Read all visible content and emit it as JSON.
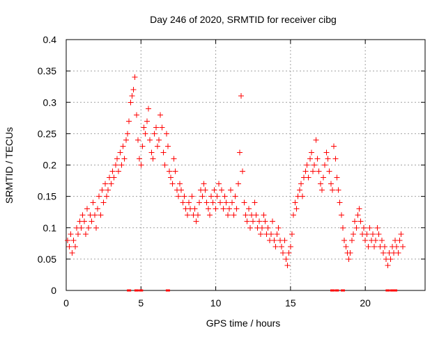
{
  "colors": {
    "series": "#ff0000",
    "grid": "#a0a0a0",
    "axis": "#000000",
    "background": "#ffffff"
  },
  "chart_data": {
    "type": "scatter",
    "title": "Day 246 of 2020, SRMTID for receiver cibg",
    "xlabel": "GPS time / hours",
    "ylabel": "SRMTID / TECUs",
    "xlim": [
      0,
      24
    ],
    "ylim": [
      0,
      0.4
    ],
    "x_ticks": [
      0,
      5,
      10,
      15,
      20
    ],
    "y_ticks": [
      0,
      0.05,
      0.1,
      0.15,
      0.2,
      0.25,
      0.3,
      0.35,
      0.4
    ],
    "x_tick_labels": [
      "0",
      "5",
      "10",
      "15",
      "20"
    ],
    "y_tick_labels": [
      "0",
      "0.05",
      "0.1",
      "0.15",
      "0.2",
      "0.25",
      "0.3",
      "0.35",
      "0.4"
    ],
    "grid": true,
    "marker": "plus",
    "series": [
      {
        "name": "SRMTID",
        "x": [
          0.1,
          0.2,
          0.3,
          0.4,
          0.5,
          0.6,
          0.7,
          0.8,
          0.9,
          1.0,
          1.1,
          1.2,
          1.3,
          1.4,
          1.5,
          1.6,
          1.7,
          1.8,
          1.9,
          2.0,
          2.1,
          2.2,
          2.3,
          2.4,
          2.5,
          2.6,
          2.7,
          2.8,
          2.9,
          3.0,
          3.1,
          3.2,
          3.3,
          3.4,
          3.5,
          3.6,
          3.7,
          3.8,
          3.9,
          4.0,
          4.1,
          4.2,
          4.3,
          4.4,
          4.5,
          4.6,
          4.7,
          4.8,
          4.9,
          5.0,
          5.1,
          5.2,
          5.3,
          5.4,
          5.5,
          5.6,
          5.7,
          5.8,
          5.9,
          6.0,
          6.1,
          6.2,
          6.3,
          6.4,
          6.5,
          6.6,
          6.7,
          6.8,
          6.9,
          7.0,
          7.1,
          7.2,
          7.3,
          7.4,
          7.5,
          7.6,
          7.7,
          7.8,
          7.9,
          8.0,
          8.1,
          8.2,
          8.3,
          8.4,
          8.5,
          8.6,
          8.7,
          8.8,
          8.9,
          9.0,
          9.1,
          9.2,
          9.3,
          9.4,
          9.5,
          9.6,
          9.7,
          9.8,
          9.9,
          10.0,
          10.1,
          10.2,
          10.3,
          10.4,
          10.5,
          10.6,
          10.7,
          10.8,
          10.9,
          11.0,
          11.1,
          11.2,
          11.3,
          11.4,
          11.5,
          11.6,
          11.7,
          11.8,
          11.9,
          12.0,
          12.1,
          12.2,
          12.3,
          12.4,
          12.5,
          12.6,
          12.7,
          12.8,
          12.9,
          13.0,
          13.1,
          13.2,
          13.3,
          13.4,
          13.5,
          13.6,
          13.7,
          13.8,
          13.9,
          14.0,
          14.1,
          14.2,
          14.3,
          14.4,
          14.5,
          14.6,
          14.7,
          14.8,
          14.9,
          15.0,
          15.1,
          15.2,
          15.3,
          15.4,
          15.5,
          15.6,
          15.7,
          15.8,
          15.9,
          16.0,
          16.1,
          16.2,
          16.3,
          16.4,
          16.5,
          16.6,
          16.7,
          16.8,
          16.9,
          17.0,
          17.1,
          17.2,
          17.3,
          17.4,
          17.5,
          17.6,
          17.7,
          17.8,
          17.9,
          18.0,
          18.1,
          18.2,
          18.3,
          18.4,
          18.5,
          18.6,
          18.7,
          18.8,
          18.9,
          19.0,
          19.1,
          19.2,
          19.3,
          19.4,
          19.5,
          19.6,
          19.7,
          19.8,
          19.9,
          20.0,
          20.1,
          20.2,
          20.3,
          20.4,
          20.5,
          20.6,
          20.7,
          20.8,
          20.9,
          21.0,
          21.1,
          21.2,
          21.3,
          21.4,
          21.5,
          21.6,
          21.7,
          21.8,
          21.9,
          22.0,
          22.1,
          22.2,
          22.3,
          22.4,
          22.5
        ],
        "y": [
          0.08,
          0.07,
          0.09,
          0.06,
          0.08,
          0.07,
          0.1,
          0.09,
          0.11,
          0.1,
          0.12,
          0.11,
          0.09,
          0.13,
          0.1,
          0.12,
          0.11,
          0.14,
          0.12,
          0.1,
          0.13,
          0.15,
          0.12,
          0.16,
          0.14,
          0.17,
          0.15,
          0.16,
          0.18,
          0.17,
          0.19,
          0.18,
          0.2,
          0.21,
          0.19,
          0.22,
          0.2,
          0.23,
          0.21,
          0.24,
          0.25,
          0.27,
          0.3,
          0.31,
          0.32,
          0.34,
          0.28,
          0.24,
          0.21,
          0.2,
          0.23,
          0.26,
          0.25,
          0.27,
          0.29,
          0.24,
          0.22,
          0.21,
          0.25,
          0.26,
          0.23,
          0.24,
          0.28,
          0.26,
          0.22,
          0.2,
          0.25,
          0.23,
          0.19,
          0.18,
          0.17,
          0.21,
          0.19,
          0.16,
          0.15,
          0.17,
          0.16,
          0.14,
          0.15,
          0.13,
          0.12,
          0.14,
          0.13,
          0.15,
          0.12,
          0.13,
          0.11,
          0.12,
          0.14,
          0.16,
          0.15,
          0.17,
          0.16,
          0.14,
          0.13,
          0.12,
          0.15,
          0.14,
          0.16,
          0.13,
          0.15,
          0.17,
          0.14,
          0.16,
          0.13,
          0.15,
          0.14,
          0.12,
          0.13,
          0.16,
          0.14,
          0.12,
          0.15,
          0.13,
          0.17,
          0.22,
          0.31,
          0.19,
          0.14,
          0.12,
          0.11,
          0.13,
          0.1,
          0.12,
          0.11,
          0.14,
          0.12,
          0.1,
          0.11,
          0.09,
          0.1,
          0.12,
          0.11,
          0.09,
          0.1,
          0.08,
          0.09,
          0.11,
          0.08,
          0.07,
          0.09,
          0.1,
          0.08,
          0.07,
          0.06,
          0.08,
          0.05,
          0.04,
          0.06,
          0.07,
          0.09,
          0.12,
          0.14,
          0.13,
          0.15,
          0.16,
          0.17,
          0.15,
          0.18,
          0.19,
          0.2,
          0.18,
          0.21,
          0.22,
          0.19,
          0.2,
          0.24,
          0.21,
          0.19,
          0.17,
          0.16,
          0.18,
          0.2,
          0.22,
          0.21,
          0.19,
          0.17,
          0.16,
          0.23,
          0.21,
          0.18,
          0.16,
          0.14,
          0.12,
          0.1,
          0.08,
          0.07,
          0.06,
          0.05,
          0.06,
          0.08,
          0.09,
          0.11,
          0.1,
          0.12,
          0.13,
          0.11,
          0.09,
          0.1,
          0.08,
          0.09,
          0.07,
          0.1,
          0.08,
          0.09,
          0.07,
          0.08,
          0.1,
          0.09,
          0.07,
          0.08,
          0.06,
          0.07,
          0.05,
          0.04,
          0.06,
          0.05,
          0.07,
          0.06,
          0.08,
          0.07,
          0.06,
          0.08,
          0.09,
          0.07
        ]
      }
    ],
    "baseline_markers_x": [
      4.2,
      4.7,
      5.0,
      6.8,
      17.8,
      18.1,
      18.5,
      21.5,
      21.8,
      22.0
    ]
  }
}
